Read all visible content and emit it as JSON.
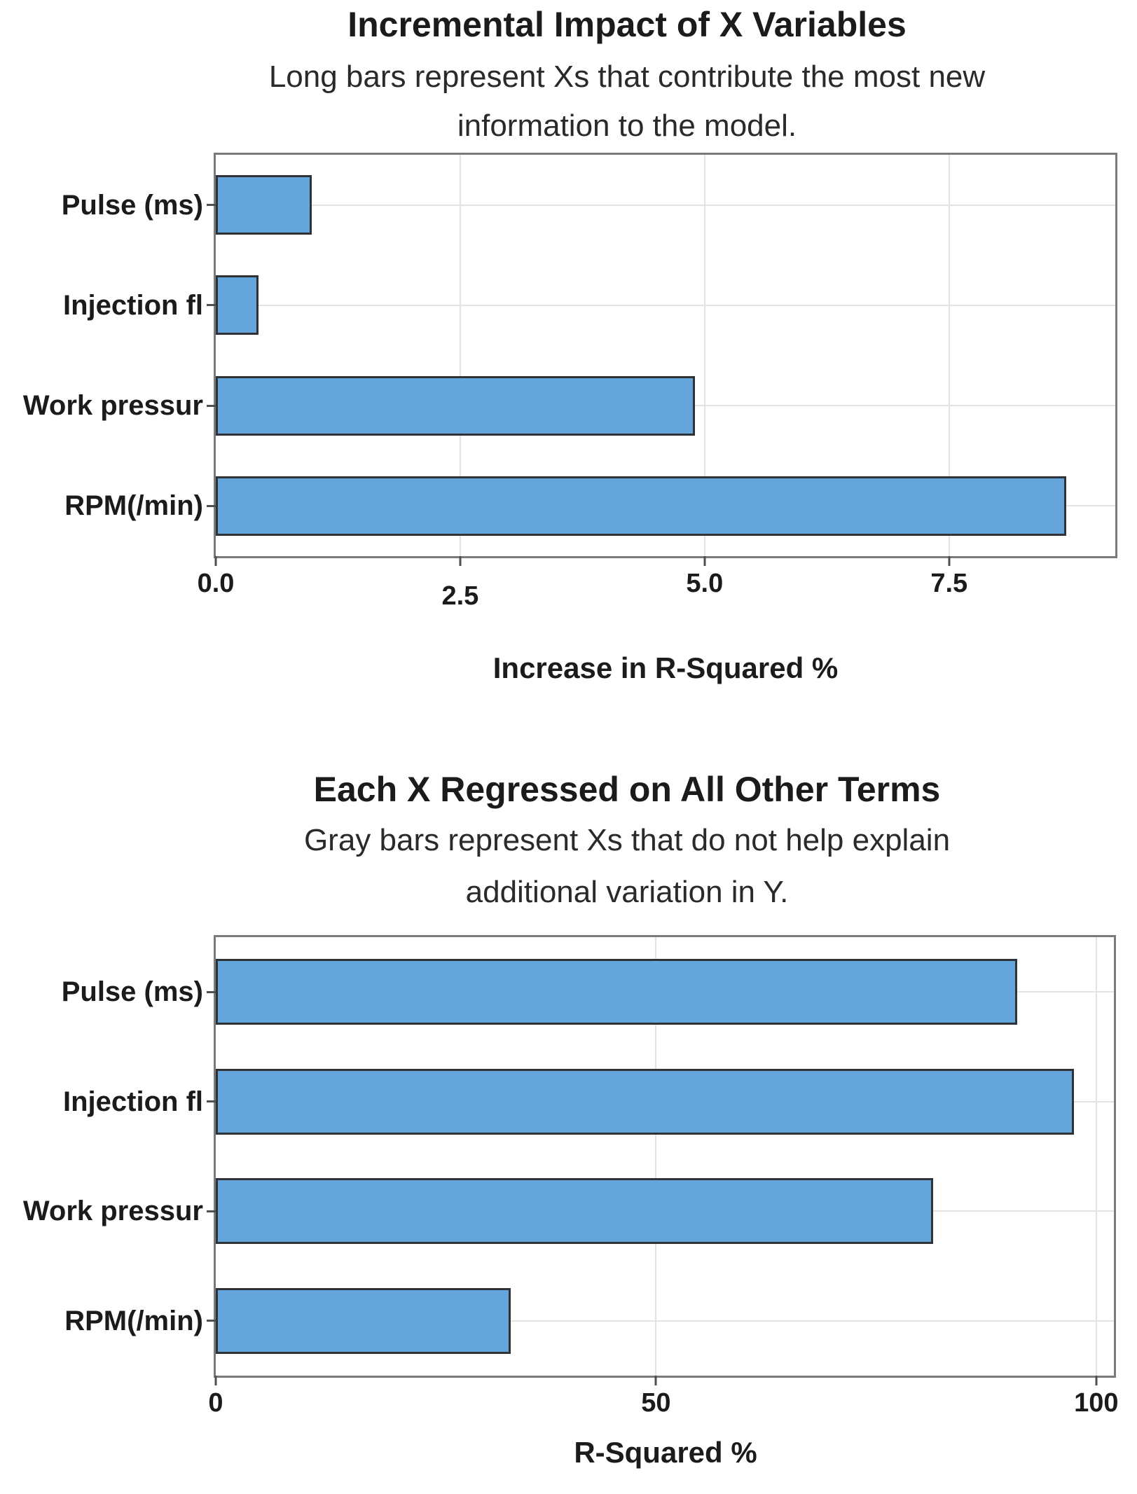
{
  "report": {
    "name": "Variable impact bar charts"
  },
  "style": {
    "background": "#ffffff",
    "text_color": "#1b1b1b",
    "grid_color": "#e3e3e3",
    "frame_color": "#7a7a7a",
    "tick_color": "#4f4f4f",
    "bar_fill": "#64a5dc",
    "bar_border": "#2f3338"
  },
  "chart_data": [
    {
      "type": "bar",
      "orientation": "horizontal",
      "title": "Incremental Impact of X Variables",
      "subtitle_lines": [
        "Long bars represent Xs that contribute the most new",
        "information to the model."
      ],
      "xlabel": "Increase in R-Squared %",
      "categories": [
        "Pulse (ms)",
        "Injection fl",
        "Work pressur",
        "RPM(/min)"
      ],
      "values": [
        0.98,
        0.44,
        4.9,
        8.7
      ],
      "xlim": [
        0,
        9.2
      ],
      "xticks": [
        {
          "value": 0,
          "label": "0.0"
        },
        {
          "value": 2.5,
          "label": "2.5",
          "label_dy": 18
        },
        {
          "value": 5,
          "label": "5.0"
        },
        {
          "value": 7.5,
          "label": "7.5"
        }
      ],
      "grid": true,
      "legend": "none",
      "bar_color": "#64a5dc",
      "bar_border_color": "#2f3338"
    },
    {
      "type": "bar",
      "orientation": "horizontal",
      "title": "Each X Regressed on All Other Terms",
      "subtitle_lines": [
        "Gray bars represent Xs that do not help explain",
        "additional variation in Y."
      ],
      "xlabel": "R-Squared %",
      "categories": [
        "Pulse (ms)",
        "Injection fl",
        "Work pressur",
        "RPM(/min)"
      ],
      "values": [
        91,
        97.5,
        81.5,
        33.5
      ],
      "xlim": [
        0,
        102
      ],
      "xticks": [
        {
          "value": 0,
          "label": "0"
        },
        {
          "value": 50,
          "label": "50"
        },
        {
          "value": 100,
          "label": "100"
        }
      ],
      "grid": true,
      "legend": "none",
      "bar_color": "#64a5dc",
      "bar_border_color": "#2f3338"
    }
  ]
}
